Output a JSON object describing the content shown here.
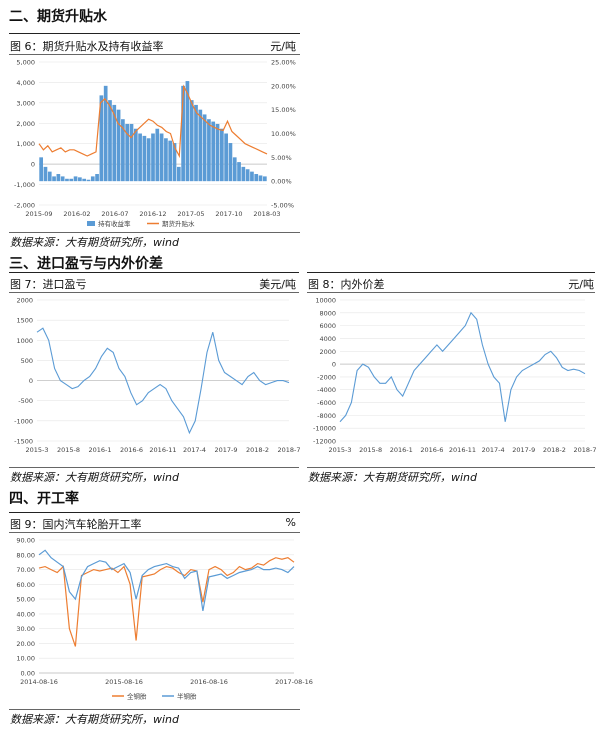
{
  "sections": {
    "futures_basis": "二、期货升贴水",
    "import_profit": "三、进口盈亏与内外价差",
    "operating_rate": "四、开工率"
  },
  "colors": {
    "blue": "#5b9bd5",
    "orange": "#ed7d31",
    "line_blue": "#5b9bd5",
    "axis": "#999999"
  },
  "chart_data": [
    {
      "id": "fig6",
      "type": "bar",
      "caption": "图 6：期货升贴水及持有收益率",
      "unit": "元/吨",
      "source": "数据来源：大有期货研究所，wind",
      "x_ticks": [
        "2015-09",
        "2016-02",
        "2016-07",
        "2016-12",
        "2017-05",
        "2017-10",
        "2018-03"
      ],
      "y_ticks": [
        "5,000",
        "4,000",
        "3,000",
        "2,000",
        "1,000",
        "0",
        "-1,000",
        "-2,000"
      ],
      "ylim": [
        -2000,
        5000
      ],
      "y2_ticks": [
        "25.00%",
        "20.00%",
        "15.00%",
        "10.00%",
        "5.00%",
        "0.00%",
        "-5.00%"
      ],
      "y2lim": [
        -5,
        25
      ],
      "legend": [
        "持有收益率",
        "期货升贴水"
      ],
      "series": [
        {
          "type": "bar",
          "legend_index": 0,
          "axis": "right",
          "values_pct": [
            5,
            3,
            2,
            1,
            1.5,
            1,
            0.5,
            0.5,
            1,
            0.8,
            0.5,
            0.3,
            1,
            1.5,
            18,
            20,
            17,
            16,
            15,
            13,
            12,
            12,
            11,
            10,
            9.5,
            9,
            10,
            11,
            10,
            9,
            8.5,
            8,
            3,
            20,
            21,
            17,
            16,
            15,
            14,
            13,
            12.5,
            12,
            11,
            10,
            8,
            5,
            4,
            3,
            2.5,
            2,
            1.5,
            1.2,
            1
          ]
        },
        {
          "type": "line",
          "legend_index": 1,
          "axis": "left",
          "values": [
            1000,
            700,
            900,
            600,
            700,
            800,
            600,
            700,
            700,
            600,
            500,
            400,
            500,
            600,
            3000,
            3200,
            2900,
            2500,
            2000,
            1800,
            1500,
            1300,
            1600,
            1800,
            2000,
            2200,
            2100,
            1900,
            1800,
            1600,
            1500,
            800,
            400,
            3800,
            3400,
            2900,
            2500,
            2300,
            2100,
            1900,
            1800,
            1700,
            1650,
            2100,
            1600,
            1400,
            1200,
            1000,
            900,
            800,
            700,
            600,
            500
          ]
        }
      ]
    },
    {
      "id": "fig7",
      "type": "line",
      "caption": "图 7：进口盈亏",
      "unit": "美元/吨",
      "source": "数据来源：大有期货研究所，wind",
      "x_ticks": [
        "2015-3",
        "2015-8",
        "2016-1",
        "2016-6",
        "2016-11",
        "2017-4",
        "2017-9",
        "2018-2",
        "2018-7"
      ],
      "y_ticks": [
        "2000",
        "1500",
        "1000",
        "500",
        "0",
        "-500",
        "-1000",
        "-1500"
      ],
      "ylim": [
        -1500,
        2000
      ],
      "series": [
        {
          "values": [
            1200,
            1300,
            1000,
            300,
            0,
            -100,
            -200,
            -150,
            0,
            100,
            300,
            600,
            800,
            700,
            300,
            100,
            -300,
            -600,
            -500,
            -300,
            -200,
            -100,
            -200,
            -500,
            -700,
            -900,
            -1300,
            -1000,
            -200,
            700,
            1200,
            500,
            200,
            100,
            0,
            -100,
            100,
            200,
            0,
            -100,
            -50,
            0,
            0,
            -50
          ]
        }
      ]
    },
    {
      "id": "fig8",
      "type": "line",
      "caption": "图 8：内外价差",
      "unit": "元/吨",
      "source": "数据来源：大有期货研究所，wind",
      "x_ticks": [
        "2015-3",
        "2015-8",
        "2016-1",
        "2016-6",
        "2016-11",
        "2017-4",
        "2017-9",
        "2018-2",
        "2018-7"
      ],
      "y_ticks": [
        "10000",
        "8000",
        "6000",
        "4000",
        "2000",
        "0",
        "-2000",
        "-4000",
        "-6000",
        "-8000",
        "-10000",
        "-12000"
      ],
      "ylim": [
        -12000,
        10000
      ],
      "series": [
        {
          "values": [
            -9000,
            -8000,
            -6000,
            -1000,
            0,
            -500,
            -2000,
            -3000,
            -3000,
            -2000,
            -4000,
            -5000,
            -3000,
            -1000,
            0,
            1000,
            2000,
            3000,
            2000,
            3000,
            4000,
            5000,
            6000,
            8000,
            7000,
            3000,
            0,
            -2000,
            -3000,
            -9000,
            -4000,
            -2000,
            -1000,
            -500,
            0,
            500,
            1500,
            2000,
            1000,
            -500,
            -1000,
            -800,
            -1000,
            -1500
          ]
        }
      ]
    },
    {
      "id": "fig9",
      "type": "line",
      "caption": "图 9：国内汽车轮胎开工率",
      "unit": "%",
      "source": "数据来源：大有期货研究所，wind",
      "x_ticks": [
        "2014-08-16",
        "2015-08-16",
        "2016-08-16",
        "2017-08-16"
      ],
      "y_ticks": [
        "90.00",
        "80.00",
        "70.00",
        "60.00",
        "50.00",
        "40.00",
        "30.00",
        "20.00",
        "10.00",
        "0.00"
      ],
      "ylim": [
        0,
        90
      ],
      "legend": [
        "全钢胎",
        "半钢胎"
      ],
      "series": [
        {
          "name": "全钢胎",
          "color": "orange",
          "values": [
            71,
            72,
            70,
            68,
            72,
            30,
            18,
            66,
            68,
            70,
            69,
            70,
            71,
            68,
            72,
            60,
            22,
            65,
            66,
            67,
            70,
            72,
            71,
            68,
            66,
            70,
            69,
            48,
            70,
            72,
            70,
            66,
            68,
            72,
            70,
            71,
            74,
            73,
            76,
            78,
            77,
            78,
            75
          ]
        },
        {
          "name": "半钢胎",
          "color": "blue",
          "values": [
            80,
            83,
            78,
            75,
            72,
            55,
            50,
            65,
            72,
            74,
            76,
            75,
            70,
            72,
            74,
            68,
            50,
            66,
            70,
            72,
            73,
            74,
            72,
            71,
            64,
            68,
            69,
            42,
            65,
            66,
            67,
            64,
            66,
            68,
            69,
            70,
            72,
            70,
            70,
            71,
            70,
            68,
            72
          ]
        }
      ]
    }
  ]
}
